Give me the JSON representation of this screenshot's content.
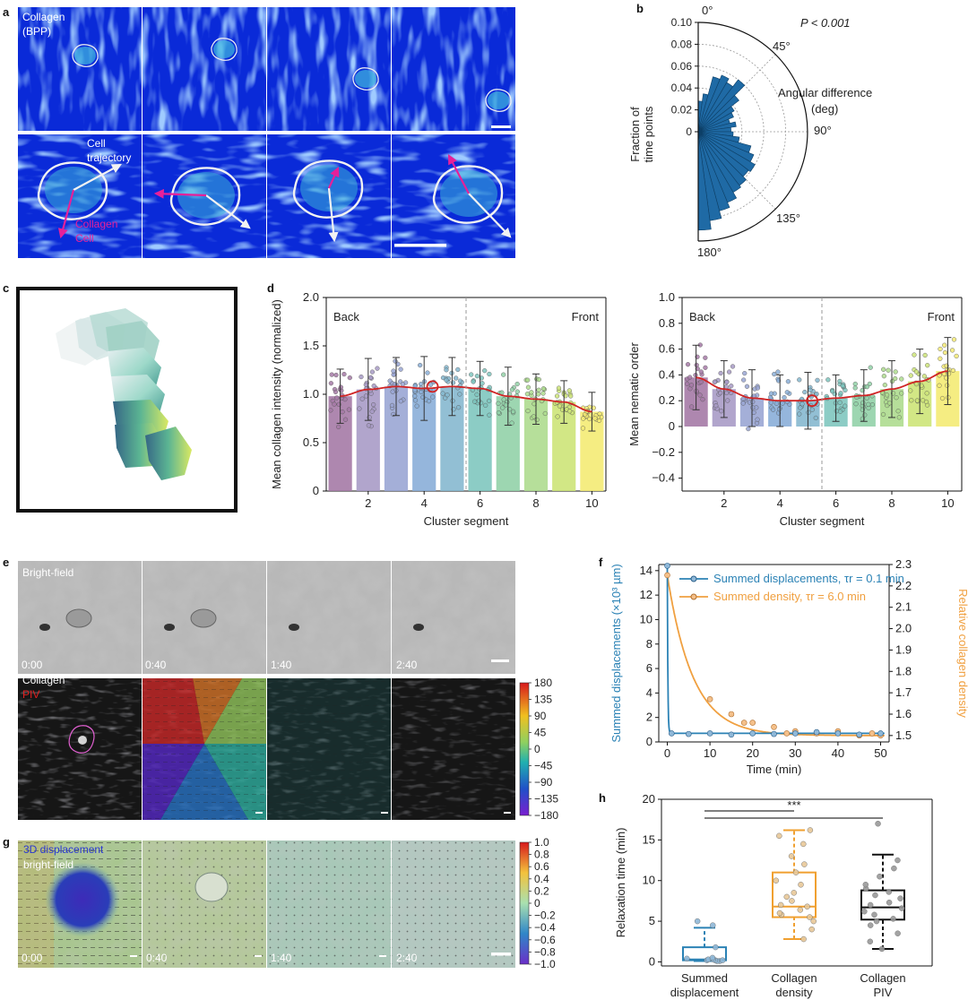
{
  "panels": {
    "a": {
      "letter": "a",
      "row1_label_line1": "Collagen",
      "row1_label_line2": "(BPP)",
      "row2_label_line1": "Cell",
      "row2_label_line2": "trajectory",
      "collagen_label_line1": "Collagen",
      "collagen_label_line2": "Cell",
      "colors": {
        "bg": "#0a2ad8",
        "fiber": "#5aa0ff",
        "outline": "#f2f2f2",
        "arrow_collagen": "#e6209a"
      }
    },
    "b": {
      "letter": "b",
      "pvalue": "P < 0.001",
      "ylabel_line1": "Fraction of",
      "ylabel_line2": "time points",
      "angle_label_line1": "Angular difference",
      "angle_label_line2": "(deg)",
      "angles": [
        "0°",
        "45°",
        "90°",
        "135°",
        "180°"
      ],
      "color": "#1f6aa5"
    },
    "c": {
      "letter": "c"
    },
    "d": {
      "letter": "d"
    },
    "e": {
      "letter": "e",
      "bf_label": "Bright-field",
      "col_label_line1": "Collagen",
      "col_label_line2": "PIV",
      "times": [
        "0:00",
        "0:40",
        "1:40",
        "2:40"
      ],
      "colorbar_ticks": [
        "180",
        "135",
        "90",
        "45",
        "0",
        "−45",
        "−90",
        "−135",
        "−180"
      ]
    },
    "f": {
      "letter": "f"
    },
    "g": {
      "letter": "g",
      "label_line1": "3D displacement",
      "label_line2": "bright-field",
      "times": [
        "0:00",
        "0:40",
        "1:40",
        "2:40"
      ],
      "colorbar_ticks": [
        "1.0",
        "0.8",
        "0.6",
        "0.4",
        "0.2",
        "0",
        "−0.2",
        "−0.4",
        "−0.6",
        "−0.8",
        "−1.0"
      ]
    },
    "h": {
      "letter": "h"
    }
  },
  "chart_data": [
    {
      "id": "b",
      "type": "bar",
      "title": "",
      "xlabel": "Angular difference (deg)",
      "ylabel": "Fraction of time points",
      "categories_deg": [
        0,
        7.5,
        15,
        22.5,
        30,
        37.5,
        45,
        52.5,
        60,
        67.5,
        75,
        82.5,
        90,
        97.5,
        105,
        112.5,
        120,
        127.5,
        135,
        142.5,
        150,
        157.5,
        165,
        172.5
      ],
      "values": [
        0.028,
        0.035,
        0.052,
        0.056,
        0.052,
        0.06,
        0.047,
        0.038,
        0.035,
        0.03,
        0.035,
        0.03,
        0.032,
        0.038,
        0.05,
        0.055,
        0.06,
        0.058,
        0.062,
        0.064,
        0.07,
        0.075,
        0.082,
        0.09
      ],
      "rlim": [
        0,
        0.1
      ],
      "rticks": [
        "0",
        "0.02",
        "0.04",
        "0.06",
        "0.08",
        "0.10"
      ]
    },
    {
      "id": "d-left",
      "type": "bar",
      "title": "",
      "xlabel": "Cluster segment",
      "ylabel": "Mean collagen intensity (normalized)",
      "ylim": [
        0,
        2
      ],
      "yticks": [
        "0",
        "0.5",
        "1.0",
        "1.5",
        "2.0"
      ],
      "xticks": [
        "2",
        "4",
        "6",
        "8",
        "10"
      ],
      "region_left": "Back",
      "region_right": "Front",
      "categories": [
        1,
        2,
        3,
        4,
        5,
        6,
        7,
        8,
        9,
        10
      ],
      "values": [
        0.98,
        1.05,
        1.08,
        1.06,
        1.08,
        1.06,
        0.98,
        0.95,
        0.92,
        0.82
      ],
      "errors": [
        0.28,
        0.32,
        0.3,
        0.33,
        0.3,
        0.28,
        0.3,
        0.26,
        0.22,
        0.2
      ],
      "fit_peak_segment": 4,
      "fit_peak_value": 1.08
    },
    {
      "id": "d-right",
      "type": "bar",
      "title": "",
      "xlabel": "Cluster segment",
      "ylabel": "Mean nematic order",
      "ylim": [
        -0.5,
        1.0
      ],
      "yticks": [
        "−0.4",
        "−0.2",
        "0",
        "0.2",
        "0.4",
        "0.6",
        "0.8",
        "1.0"
      ],
      "xticks": [
        "2",
        "4",
        "6",
        "8",
        "10"
      ],
      "region_left": "Back",
      "region_right": "Front",
      "categories": [
        1,
        2,
        3,
        4,
        5,
        6,
        7,
        8,
        9,
        10
      ],
      "values": [
        0.38,
        0.29,
        0.22,
        0.2,
        0.2,
        0.22,
        0.24,
        0.29,
        0.35,
        0.43
      ],
      "errors": [
        0.25,
        0.22,
        0.22,
        0.2,
        0.22,
        0.18,
        0.2,
        0.22,
        0.25,
        0.26
      ],
      "fit_min_segment": 5,
      "fit_min_value": 0.2
    },
    {
      "id": "f",
      "type": "line",
      "title": "",
      "xlabel": "Time (min)",
      "ylabel": "Summed displacements (×10³ µm)",
      "y2label": "Relative collagen density",
      "xlim": [
        -2,
        52
      ],
      "ylim": [
        0,
        14.5
      ],
      "y2lim": [
        1.47,
        2.3
      ],
      "xticks": [
        "0",
        "10",
        "20",
        "30",
        "40",
        "50"
      ],
      "yticks": [
        "0",
        "2",
        "4",
        "6",
        "8",
        "10",
        "12",
        "14"
      ],
      "y2ticks": [
        "1.5",
        "1.6",
        "1.7",
        "1.8",
        "1.9",
        "2.0",
        "2.1",
        "2.2",
        "2.3"
      ],
      "legend": [
        "Summed displacements, τr = 0.1 min",
        "Summed density, τr = 6.0 min"
      ],
      "series": [
        {
          "name": "Summed displacements",
          "tau_min": 0.1,
          "color": "#2b82b5",
          "x": [
            0,
            1,
            5,
            10,
            15,
            20,
            25,
            30,
            35,
            40,
            45,
            50
          ],
          "y": [
            14.4,
            0.7,
            0.65,
            0.7,
            0.6,
            0.7,
            0.65,
            0.7,
            0.8,
            0.7,
            0.6,
            0.7
          ]
        },
        {
          "name": "Summed density",
          "tau_min": 6.0,
          "color": "#f0a040",
          "x": [
            0,
            10,
            15,
            18,
            20,
            25,
            28,
            30,
            35,
            40,
            45,
            48,
            50
          ],
          "y": [
            2.25,
            1.67,
            1.6,
            1.56,
            1.56,
            1.54,
            1.51,
            1.52,
            1.51,
            1.52,
            1.5,
            1.51,
            1.5
          ]
        }
      ]
    },
    {
      "id": "h",
      "type": "box",
      "title": "",
      "xlabel": "",
      "ylabel": "Relaxation time (min)",
      "ylim": [
        -0.5,
        20
      ],
      "yticks": [
        "0",
        "5",
        "10",
        "15",
        "20"
      ],
      "significance": "***",
      "categories": [
        {
          "line1": "Summed",
          "line2": "displacement",
          "min": 0.1,
          "q1": 0.2,
          "median": 0.3,
          "q3": 1.8,
          "max": 4.2,
          "color": "#2b82b5",
          "points": [
            0.1,
            0.1,
            0.2,
            0.2,
            0.2,
            0.3,
            0.3,
            0.4,
            0.5,
            1.8,
            4.5,
            5.0
          ]
        },
        {
          "line1": "Collagen",
          "line2": "density",
          "min": 2.8,
          "q1": 5.5,
          "median": 6.8,
          "q3": 11.0,
          "max": 16.2,
          "color": "#f0a030",
          "points": [
            2.8,
            4.0,
            5.0,
            5.5,
            5.8,
            6.0,
            6.4,
            6.8,
            7.0,
            7.5,
            8.0,
            8.5,
            9.5,
            10.0,
            11.0,
            12.0,
            13.0,
            14.5,
            15.5,
            16.2
          ]
        },
        {
          "line1": "Collagen",
          "line2": "PIV",
          "min": 1.6,
          "q1": 5.2,
          "median": 6.7,
          "q3": 8.8,
          "max": 13.2,
          "color": "#111111",
          "points": [
            1.6,
            2.5,
            3.5,
            4.5,
            5.0,
            5.3,
            5.8,
            6.2,
            6.6,
            7.0,
            7.3,
            7.8,
            8.2,
            8.6,
            9.0,
            9.5,
            10.5,
            11.5,
            12.5,
            17.0
          ]
        }
      ]
    }
  ]
}
